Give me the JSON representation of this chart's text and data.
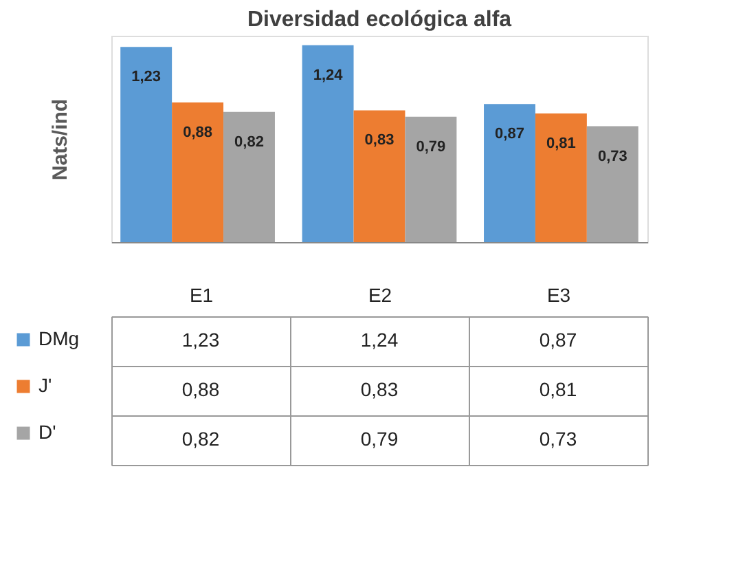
{
  "chart_data": {
    "type": "bar",
    "title": "Diversidad ecológica alfa",
    "ylabel": "Nats/ind",
    "categories": [
      "E1",
      "E2",
      "E3"
    ],
    "series": [
      {
        "name": "DMg",
        "color": "#5b9bd5",
        "values": [
          1.23,
          1.24,
          0.87
        ],
        "value_labels": [
          "1,23",
          "1,24",
          "0,87"
        ]
      },
      {
        "name": "J'",
        "color": "#ed7d31",
        "values": [
          0.88,
          0.83,
          0.81
        ],
        "value_labels": [
          "0,88",
          "0,83",
          "0,81"
        ]
      },
      {
        "name": "D'",
        "color": "#a5a5a5",
        "values": [
          0.82,
          0.79,
          0.73
        ],
        "value_labels": [
          "0,82",
          "0,79",
          "0,73"
        ]
      }
    ],
    "tick_labels": false,
    "legend": "bottom left"
  }
}
